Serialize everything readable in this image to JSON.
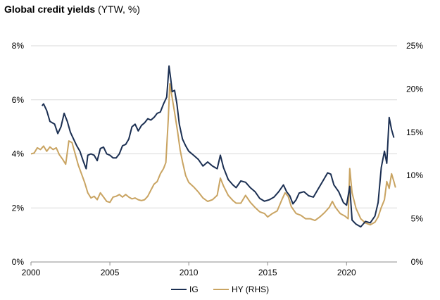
{
  "chart_data": {
    "type": "line",
    "title_bold": "Global credit yields",
    "title_rest": " (YTW, %)",
    "x_ticks": [
      "2000",
      "2005",
      "2010",
      "2015",
      "2020"
    ],
    "x_tick_values": [
      2000,
      2005,
      2010,
      2015,
      2020
    ],
    "xlim": [
      2000,
      2023.2
    ],
    "y_left_ticks": [
      "0%",
      "2%",
      "4%",
      "6%",
      "8%"
    ],
    "y_left_values": [
      0,
      2,
      4,
      6,
      8
    ],
    "y_left_lim": [
      0,
      8
    ],
    "y_right_ticks": [
      "0%",
      "5%",
      "10%",
      "15%",
      "20%",
      "25%"
    ],
    "y_right_values": [
      0,
      5,
      10,
      15,
      20,
      25
    ],
    "y_right_lim": [
      0,
      25
    ],
    "grid": true,
    "legend_position": "bottom",
    "series": [
      {
        "name": "IG",
        "axis": "left",
        "color": "#1b2f52",
        "points": [
          [
            2000.7,
            5.78
          ],
          [
            2000.8,
            5.85
          ],
          [
            2001.0,
            5.6
          ],
          [
            2001.2,
            5.2
          ],
          [
            2001.5,
            5.1
          ],
          [
            2001.7,
            4.75
          ],
          [
            2001.9,
            5.0
          ],
          [
            2002.1,
            5.5
          ],
          [
            2002.3,
            5.2
          ],
          [
            2002.5,
            4.8
          ],
          [
            2002.7,
            4.55
          ],
          [
            2002.9,
            4.3
          ],
          [
            2003.1,
            4.1
          ],
          [
            2003.3,
            3.75
          ],
          [
            2003.5,
            3.45
          ],
          [
            2003.6,
            3.95
          ],
          [
            2003.8,
            4.0
          ],
          [
            2004.0,
            3.95
          ],
          [
            2004.2,
            3.75
          ],
          [
            2004.4,
            4.2
          ],
          [
            2004.6,
            4.25
          ],
          [
            2004.8,
            4.0
          ],
          [
            2005.0,
            3.95
          ],
          [
            2005.2,
            3.85
          ],
          [
            2005.4,
            3.85
          ],
          [
            2005.6,
            4.0
          ],
          [
            2005.8,
            4.3
          ],
          [
            2006.0,
            4.35
          ],
          [
            2006.2,
            4.55
          ],
          [
            2006.4,
            5.0
          ],
          [
            2006.6,
            5.1
          ],
          [
            2006.8,
            4.85
          ],
          [
            2007.0,
            5.05
          ],
          [
            2007.2,
            5.15
          ],
          [
            2007.4,
            5.3
          ],
          [
            2007.6,
            5.25
          ],
          [
            2007.8,
            5.35
          ],
          [
            2008.0,
            5.5
          ],
          [
            2008.2,
            5.55
          ],
          [
            2008.4,
            5.85
          ],
          [
            2008.6,
            6.1
          ],
          [
            2008.75,
            7.25
          ],
          [
            2008.85,
            6.8
          ],
          [
            2008.95,
            6.3
          ],
          [
            2009.1,
            6.35
          ],
          [
            2009.25,
            5.85
          ],
          [
            2009.4,
            5.1
          ],
          [
            2009.6,
            4.55
          ],
          [
            2009.8,
            4.3
          ],
          [
            2010.0,
            4.1
          ],
          [
            2010.3,
            3.95
          ],
          [
            2010.6,
            3.8
          ],
          [
            2010.9,
            3.55
          ],
          [
            2011.2,
            3.7
          ],
          [
            2011.5,
            3.55
          ],
          [
            2011.8,
            3.45
          ],
          [
            2012.0,
            3.95
          ],
          [
            2012.2,
            3.5
          ],
          [
            2012.5,
            3.05
          ],
          [
            2012.8,
            2.85
          ],
          [
            2013.0,
            2.75
          ],
          [
            2013.3,
            3.0
          ],
          [
            2013.6,
            2.95
          ],
          [
            2013.9,
            2.75
          ],
          [
            2014.2,
            2.6
          ],
          [
            2014.5,
            2.35
          ],
          [
            2014.8,
            2.25
          ],
          [
            2015.1,
            2.3
          ],
          [
            2015.4,
            2.4
          ],
          [
            2015.7,
            2.6
          ],
          [
            2016.0,
            2.85
          ],
          [
            2016.2,
            2.6
          ],
          [
            2016.4,
            2.45
          ],
          [
            2016.6,
            2.15
          ],
          [
            2016.8,
            2.3
          ],
          [
            2017.0,
            2.55
          ],
          [
            2017.3,
            2.6
          ],
          [
            2017.6,
            2.45
          ],
          [
            2017.9,
            2.4
          ],
          [
            2018.2,
            2.7
          ],
          [
            2018.5,
            3.0
          ],
          [
            2018.8,
            3.3
          ],
          [
            2019.0,
            3.25
          ],
          [
            2019.2,
            2.85
          ],
          [
            2019.5,
            2.6
          ],
          [
            2019.8,
            2.2
          ],
          [
            2020.0,
            2.1
          ],
          [
            2020.2,
            2.8
          ],
          [
            2020.35,
            1.55
          ],
          [
            2020.6,
            1.4
          ],
          [
            2020.9,
            1.3
          ],
          [
            2021.2,
            1.5
          ],
          [
            2021.5,
            1.45
          ],
          [
            2021.8,
            1.7
          ],
          [
            2022.0,
            2.2
          ],
          [
            2022.2,
            3.5
          ],
          [
            2022.4,
            4.1
          ],
          [
            2022.55,
            3.65
          ],
          [
            2022.7,
            5.35
          ],
          [
            2022.85,
            4.9
          ],
          [
            2023.0,
            4.6
          ]
        ]
      },
      {
        "name": "HY (RHS)",
        "axis": "right",
        "color": "#c9a462",
        "points": [
          [
            2000.0,
            12.5
          ],
          [
            2000.2,
            12.6
          ],
          [
            2000.4,
            13.2
          ],
          [
            2000.6,
            13.0
          ],
          [
            2000.8,
            13.4
          ],
          [
            2001.0,
            12.8
          ],
          [
            2001.2,
            13.3
          ],
          [
            2001.4,
            13.0
          ],
          [
            2001.6,
            13.2
          ],
          [
            2001.8,
            12.4
          ],
          [
            2002.0,
            11.9
          ],
          [
            2002.2,
            11.3
          ],
          [
            2002.4,
            14.0
          ],
          [
            2002.6,
            13.8
          ],
          [
            2002.8,
            12.5
          ],
          [
            2003.0,
            11.2
          ],
          [
            2003.2,
            10.2
          ],
          [
            2003.4,
            9.2
          ],
          [
            2003.6,
            8.0
          ],
          [
            2003.8,
            7.4
          ],
          [
            2004.0,
            7.6
          ],
          [
            2004.2,
            7.2
          ],
          [
            2004.4,
            8.0
          ],
          [
            2004.6,
            7.5
          ],
          [
            2004.8,
            7.0
          ],
          [
            2005.0,
            6.9
          ],
          [
            2005.2,
            7.5
          ],
          [
            2005.4,
            7.6
          ],
          [
            2005.6,
            7.8
          ],
          [
            2005.8,
            7.5
          ],
          [
            2006.0,
            7.8
          ],
          [
            2006.2,
            7.5
          ],
          [
            2006.4,
            7.3
          ],
          [
            2006.6,
            7.4
          ],
          [
            2006.8,
            7.2
          ],
          [
            2007.0,
            7.1
          ],
          [
            2007.2,
            7.2
          ],
          [
            2007.4,
            7.6
          ],
          [
            2007.6,
            8.3
          ],
          [
            2007.8,
            9.0
          ],
          [
            2008.0,
            9.3
          ],
          [
            2008.2,
            10.2
          ],
          [
            2008.4,
            10.8
          ],
          [
            2008.55,
            11.5
          ],
          [
            2008.7,
            16.5
          ],
          [
            2008.8,
            20.6
          ],
          [
            2008.9,
            19.5
          ],
          [
            2009.1,
            17.3
          ],
          [
            2009.3,
            15.0
          ],
          [
            2009.45,
            13.0
          ],
          [
            2009.6,
            11.6
          ],
          [
            2009.8,
            10.0
          ],
          [
            2010.0,
            9.2
          ],
          [
            2010.3,
            8.7
          ],
          [
            2010.6,
            8.1
          ],
          [
            2010.9,
            7.4
          ],
          [
            2011.2,
            7.0
          ],
          [
            2011.5,
            7.2
          ],
          [
            2011.8,
            7.7
          ],
          [
            2012.0,
            9.7
          ],
          [
            2012.2,
            8.8
          ],
          [
            2012.5,
            7.7
          ],
          [
            2012.8,
            7.1
          ],
          [
            2013.0,
            6.8
          ],
          [
            2013.3,
            6.8
          ],
          [
            2013.6,
            7.7
          ],
          [
            2013.9,
            6.9
          ],
          [
            2014.2,
            6.3
          ],
          [
            2014.5,
            5.8
          ],
          [
            2014.8,
            5.6
          ],
          [
            2015.0,
            5.2
          ],
          [
            2015.3,
            5.6
          ],
          [
            2015.6,
            5.9
          ],
          [
            2015.9,
            7.2
          ],
          [
            2016.1,
            8.0
          ],
          [
            2016.3,
            7.6
          ],
          [
            2016.5,
            6.4
          ],
          [
            2016.8,
            5.6
          ],
          [
            2017.1,
            5.4
          ],
          [
            2017.4,
            5.0
          ],
          [
            2017.7,
            5.0
          ],
          [
            2018.0,
            4.8
          ],
          [
            2018.3,
            5.2
          ],
          [
            2018.6,
            5.7
          ],
          [
            2018.9,
            6.3
          ],
          [
            2019.1,
            7.0
          ],
          [
            2019.3,
            6.3
          ],
          [
            2019.6,
            5.6
          ],
          [
            2019.9,
            5.3
          ],
          [
            2020.1,
            5.0
          ],
          [
            2020.2,
            10.8
          ],
          [
            2020.35,
            8.0
          ],
          [
            2020.6,
            6.2
          ],
          [
            2020.9,
            5.0
          ],
          [
            2021.2,
            4.5
          ],
          [
            2021.5,
            4.3
          ],
          [
            2021.8,
            4.6
          ],
          [
            2022.0,
            5.2
          ],
          [
            2022.2,
            6.3
          ],
          [
            2022.4,
            7.2
          ],
          [
            2022.55,
            9.3
          ],
          [
            2022.7,
            8.5
          ],
          [
            2022.85,
            10.2
          ],
          [
            2023.0,
            9.3
          ],
          [
            2023.1,
            8.6
          ]
        ]
      }
    ]
  }
}
